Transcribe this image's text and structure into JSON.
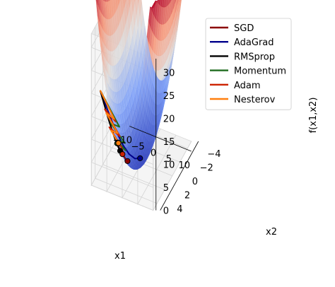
{
  "chart_data": {
    "type": "surface",
    "function": "x1^2 + x2^2",
    "title": "",
    "xlabel": "x1",
    "ylabel": "x2",
    "zlabel": "f(x1,x2)",
    "xlim": [
      -10,
      10
    ],
    "ylim": [
      -5,
      5
    ],
    "zlim": [
      0,
      33
    ],
    "x_ticks": [
      "−10",
      "−5",
      "0",
      "5",
      "10"
    ],
    "y_ticks": [
      "−4",
      "−2",
      "0",
      "2",
      "4"
    ],
    "z_ticks": [
      "0",
      "5",
      "10",
      "15",
      "20",
      "25",
      "30"
    ],
    "colormap": "coolwarm",
    "grid": true,
    "legend_position": "top-right",
    "series": [
      {
        "name": "SGD",
        "color": "#8b0000",
        "path": [
          [
            -8,
            4.3,
            80.5
          ],
          [
            -6.6,
            3.6,
            56.5
          ],
          [
            -5.4,
            3.0,
            38.2
          ],
          [
            -4.3,
            2.5,
            24.7
          ],
          [
            -3.5,
            2.1,
            16.7
          ],
          [
            -2.9,
            1.8,
            11.6
          ],
          [
            -2.5,
            1.6,
            8.8
          ]
        ],
        "end": [
          -2.5,
          1.6,
          8.8
        ]
      },
      {
        "name": "AdaGrad",
        "color": "#00008b",
        "path": [
          [
            -8,
            4.3,
            80.5
          ],
          [
            -5.8,
            2.4,
            39.4
          ],
          [
            -4.2,
            1.4,
            19.6
          ],
          [
            -3.0,
            0.8,
            9.6
          ],
          [
            -1.8,
            0.2,
            3.3
          ],
          [
            -0.9,
            -0.4,
            1.0
          ]
        ],
        "end": [
          -0.9,
          -0.4,
          1.0
        ]
      },
      {
        "name": "RMSprop",
        "color": "#000000",
        "path": [
          [
            -8,
            4.3,
            80.5
          ],
          [
            -6.2,
            3.4,
            50.0
          ],
          [
            -5.0,
            2.9,
            33.4
          ],
          [
            -4.3,
            2.6,
            25.3
          ],
          [
            -3.9,
            2.4,
            21.0
          ]
        ],
        "end": [
          -3.9,
          2.4,
          21.0
        ]
      },
      {
        "name": "Momentum",
        "color": "#1e6b1e",
        "path": [
          [
            -8,
            4.3,
            80.5
          ],
          [
            -5.6,
            1.2,
            32.8
          ],
          [
            -6.1,
            3.1,
            46.8
          ],
          [
            -4.2,
            0.9,
            18.4
          ],
          [
            -4.9,
            2.6,
            30.8
          ],
          [
            -3.6,
            1.2,
            14.4
          ],
          [
            -4.6,
            2.6,
            27.9
          ]
        ],
        "end": [
          -4.6,
          2.6,
          27.9
        ]
      },
      {
        "name": "Adam",
        "color": "#cc2200",
        "path": [
          [
            -8,
            4.3,
            80.5
          ],
          [
            -6.1,
            1.8,
            40.4
          ],
          [
            -6.9,
            4.0,
            63.6
          ],
          [
            -5.0,
            1.6,
            27.6
          ],
          [
            -5.8,
            3.7,
            47.3
          ],
          [
            -4.2,
            1.9,
            21.2
          ],
          [
            -3.6,
            1.8,
            16.2
          ],
          [
            -3.5,
            2.1,
            16.7
          ]
        ],
        "end": [
          -3.5,
          2.1,
          16.7
        ]
      },
      {
        "name": "Nesterov",
        "color": "#ff7f0e",
        "path": [
          [
            -8,
            4.3,
            80.5
          ],
          [
            -6.3,
            2.0,
            43.7
          ],
          [
            -6.7,
            3.8,
            59.3
          ],
          [
            -5.3,
            1.9,
            31.7
          ],
          [
            -5.6,
            3.4,
            42.9
          ],
          [
            -4.6,
            2.3,
            26.4
          ]
        ],
        "end": [
          -4.6,
          2.3,
          26.4
        ]
      }
    ]
  }
}
